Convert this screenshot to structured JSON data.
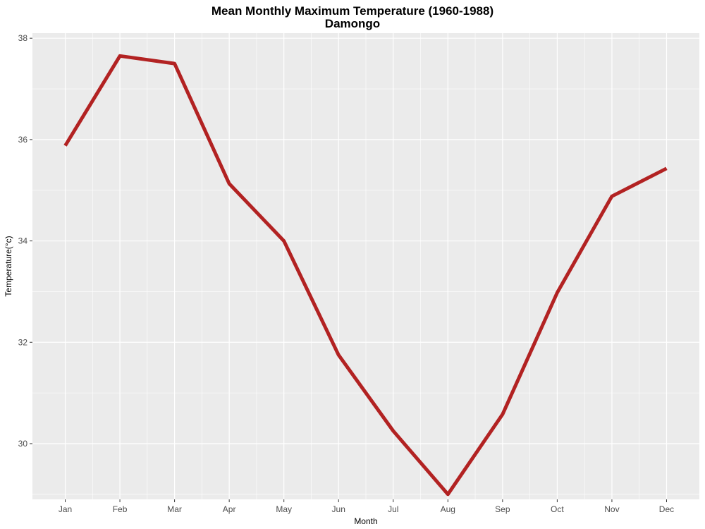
{
  "chart_data": {
    "type": "line",
    "title": "Mean Monthly Maximum Temperature (1960-1988)",
    "subtitle": "Damongo",
    "xlabel": "Month",
    "ylabel": "Temperature(°c)",
    "categories": [
      "Jan",
      "Feb",
      "Mar",
      "Apr",
      "May",
      "Jun",
      "Jul",
      "Aug",
      "Sep",
      "Oct",
      "Nov",
      "Dec"
    ],
    "series": [
      {
        "values": [
          35.88,
          37.65,
          37.5,
          35.13,
          34.0,
          31.75,
          30.25,
          29.0,
          30.58,
          32.98,
          34.88,
          35.43
        ],
        "color": "#b22222"
      }
    ],
    "ylim": [
      28.9,
      38.1
    ],
    "yticks": [
      30,
      32,
      34,
      36,
      38
    ],
    "grid": true,
    "legend": "none",
    "colors": {
      "panel_background": "#ebebeb",
      "grid_major": "#ffffff",
      "line": "#b22222",
      "tick_text": "#4d4d4d"
    }
  }
}
